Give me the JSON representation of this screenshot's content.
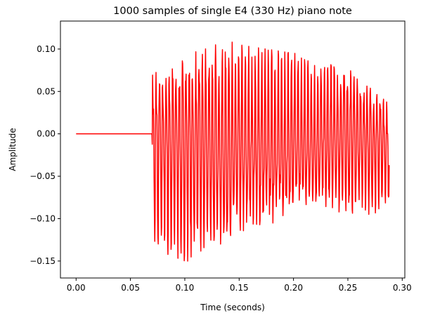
{
  "chart_data": {
    "type": "line",
    "title": "1000 samples of single E4 (330 Hz) piano note",
    "xlabel": "Time (seconds)",
    "ylabel": "Amplitude",
    "xlim": [
      -0.0144,
      0.3024
    ],
    "ylim": [
      -0.17,
      0.133
    ],
    "xticks": [
      0.0,
      0.05,
      0.1,
      0.15,
      0.2,
      0.25,
      0.3
    ],
    "xtick_labels": [
      "0.00",
      "0.05",
      "0.10",
      "0.15",
      "0.20",
      "0.25",
      "0.30"
    ],
    "yticks": [
      -0.15,
      -0.1,
      -0.05,
      0.0,
      0.05,
      0.1
    ],
    "ytick_labels": [
      "−0.15",
      "−0.10",
      "−0.05",
      "0.00",
      "0.05",
      "0.10"
    ],
    "grid": false,
    "legend": "none",
    "series": [
      {
        "color": "#ff0000",
        "sample_count": 1000,
        "t_start": 0.0,
        "t_end": 0.288,
        "silence_until": 0.07,
        "oscillation_hz": 330,
        "envelope_t": [
          0.07,
          0.08,
          0.1,
          0.115,
          0.13,
          0.15,
          0.2,
          0.25,
          0.288
        ],
        "envelope_max": [
          0.09,
          0.1,
          0.11,
          0.12,
          0.115,
          0.105,
          0.095,
          0.09,
          0.05
        ],
        "envelope_min": [
          -0.14,
          -0.14,
          -0.15,
          -0.155,
          -0.15,
          -0.135,
          -0.11,
          -0.1,
          -0.09
        ]
      }
    ]
  }
}
